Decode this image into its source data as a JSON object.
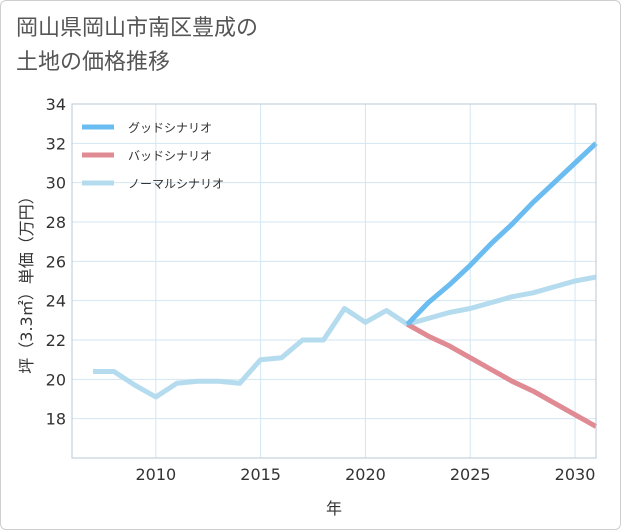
{
  "chart_data": {
    "type": "line",
    "title_lines": [
      "岡山県岡山市南区豊成の",
      "土地の価格推移"
    ],
    "xlabel": "年",
    "ylabel": "坪（3.3㎡）単価（万円）",
    "xlim": [
      2006,
      2031
    ],
    "ylim": [
      16,
      34
    ],
    "x_ticks": [
      2010,
      2015,
      2020,
      2025,
      2030
    ],
    "y_ticks": [
      18,
      20,
      22,
      24,
      26,
      28,
      30,
      32,
      34
    ],
    "grid": true,
    "legend_position": "top-left",
    "series": [
      {
        "name": "グッドシナリオ",
        "color": "#6bbcf0",
        "x": [
          2022,
          2023,
          2024,
          2025,
          2026,
          2027,
          2028,
          2029,
          2030,
          2031
        ],
        "values": [
          22.8,
          23.9,
          24.8,
          25.8,
          26.9,
          27.9,
          29.0,
          30.0,
          31.0,
          32.0
        ]
      },
      {
        "name": "バッドシナリオ",
        "color": "#e08a93",
        "x": [
          2022,
          2023,
          2024,
          2025,
          2026,
          2027,
          2028,
          2029,
          2030,
          2031
        ],
        "values": [
          22.8,
          22.2,
          21.7,
          21.1,
          20.5,
          19.9,
          19.4,
          18.8,
          18.2,
          17.6
        ]
      },
      {
        "name": "ノーマルシナリオ",
        "color": "#b4dcee",
        "x": [
          2007,
          2008,
          2009,
          2010,
          2011,
          2012,
          2013,
          2014,
          2015,
          2016,
          2017,
          2018,
          2019,
          2020,
          2021,
          2022,
          2023,
          2024,
          2025,
          2026,
          2027,
          2028,
          2029,
          2030,
          2031
        ],
        "values": [
          20.4,
          20.4,
          19.7,
          19.1,
          19.8,
          19.9,
          19.9,
          19.8,
          21.0,
          21.1,
          22.0,
          22.0,
          23.6,
          22.9,
          23.5,
          22.8,
          23.1,
          23.4,
          23.6,
          23.9,
          24.2,
          24.4,
          24.7,
          25.0,
          25.2
        ]
      }
    ]
  }
}
